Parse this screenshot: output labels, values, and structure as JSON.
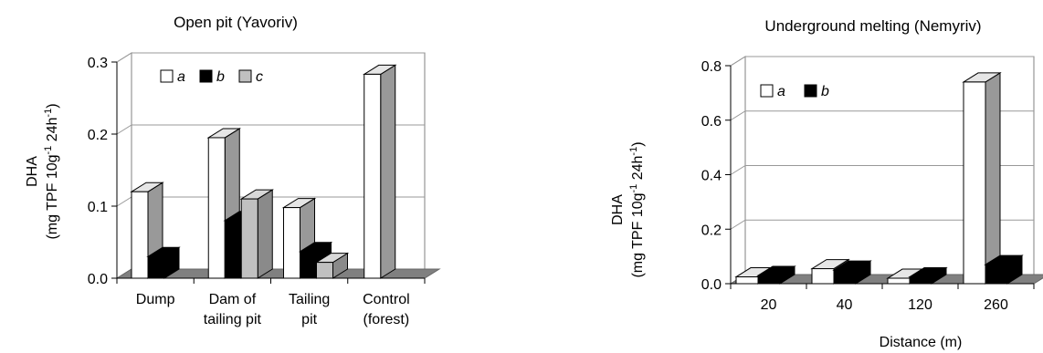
{
  "chart_data": [
    {
      "type": "bar",
      "title": "Open pit (Yavoriv)",
      "ylabel_line1": "DHA",
      "ylabel_line2_prefix": "(mg TPF 10g",
      "ylabel_sup1": "-1",
      "ylabel_mid": " 24h",
      "ylabel_sup2": "-1",
      "ylabel_suffix": ")",
      "xlabel": "",
      "ylim": [
        0,
        0.3
      ],
      "yticks": [
        "0.0",
        "0.1",
        "0.2",
        "0.3"
      ],
      "categories": [
        [
          "Dump"
        ],
        [
          "Dam of",
          "tailing pit"
        ],
        [
          "Tailing",
          "pit"
        ],
        [
          "Control",
          "(forest)"
        ]
      ],
      "series": [
        {
          "name": "a",
          "values": [
            0.12,
            0.195,
            0.098,
            0.283
          ]
        },
        {
          "name": "b",
          "values": [
            0.03,
            0.08,
            0.037,
            null
          ]
        },
        {
          "name": "c",
          "values": [
            null,
            0.11,
            0.022,
            null
          ]
        }
      ],
      "grid": true,
      "legend": "top-left",
      "colors": {
        "a": "#ffffff",
        "b": "#000000",
        "c": "#c0c0c0",
        "floor": "#808080",
        "side": "#999999"
      }
    },
    {
      "type": "bar",
      "title": "Underground melting (Nemyriv)",
      "ylabel_line1": "DHA",
      "ylabel_line2_prefix": "(mg TPF 10g",
      "ylabel_sup1": "-1",
      "ylabel_mid": " 24h",
      "ylabel_sup2": "-1",
      "ylabel_suffix": ")",
      "xlabel": "Distance (m)",
      "ylim": [
        0,
        0.8
      ],
      "yticks": [
        "0.0",
        "0.2",
        "0.4",
        "0.6",
        "0.8"
      ],
      "categories": [
        [
          "20"
        ],
        [
          "40"
        ],
        [
          "120"
        ],
        [
          "260"
        ]
      ],
      "series": [
        {
          "name": "a",
          "values": [
            0.025,
            0.055,
            0.02,
            0.74
          ]
        },
        {
          "name": "b",
          "values": [
            0.03,
            0.05,
            0.025,
            0.07
          ]
        }
      ],
      "grid": true,
      "legend": "top-left",
      "colors": {
        "a": "#ffffff",
        "b": "#000000",
        "floor": "#808080",
        "side": "#999999"
      }
    }
  ]
}
